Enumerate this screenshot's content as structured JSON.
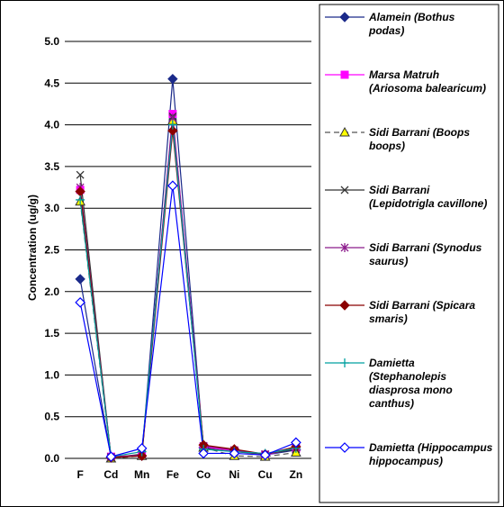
{
  "chart_data": {
    "type": "line",
    "title": "",
    "xlabel": "",
    "ylabel": "Concentration (ug/g)",
    "ylim": [
      0,
      5
    ],
    "yticks": [
      "0.0",
      "0.5",
      "1.0",
      "1.5",
      "2.0",
      "2.5",
      "3.0",
      "3.5",
      "4.0",
      "4.5",
      "5.0"
    ],
    "categories": [
      "F",
      "Cd",
      "Mn",
      "Fe",
      "Co",
      "Ni",
      "Cu",
      "Zn"
    ],
    "grid": "horizontal",
    "legend_position": "right",
    "series": [
      {
        "name": "Alamein   (Bothus podas)",
        "legend_lines": [
          "Alamein   (Bothus",
          "podas)"
        ],
        "color": "#1b2a8a",
        "marker": "diamond",
        "dash": "",
        "values": [
          2.15,
          0.01,
          0.03,
          4.55,
          0.13,
          0.1,
          0.04,
          0.1
        ]
      },
      {
        "name": "Marsa Matruh (Ariosoma balearicum)",
        "legend_lines": [
          "Marsa Matruh",
          "(Ariosoma balearicum)"
        ],
        "color": "#ff00ff",
        "marker": "square",
        "dash": "",
        "values": [
          3.22,
          0.02,
          0.04,
          4.13,
          0.14,
          0.09,
          0.04,
          0.12
        ]
      },
      {
        "name": "Sidi Barrani (Boops boops)",
        "legend_lines": [
          "Sidi Barrani (Boops",
          "boops)"
        ],
        "color": "#555555",
        "marker": "triangle",
        "markerFill": "#ffff00",
        "dash": "6,4",
        "values": [
          3.08,
          0.0,
          0.03,
          4.05,
          0.13,
          0.03,
          0.02,
          0.07
        ]
      },
      {
        "name": "Sidi Barrani (Lepidotrigla cavillone)",
        "legend_lines": [
          "Sidi Barrani",
          "(Lepidotrigla cavillone)"
        ],
        "color": "#333333",
        "marker": "x",
        "dash": "",
        "values": [
          3.4,
          0.01,
          0.05,
          4.1,
          0.12,
          0.08,
          0.05,
          0.11
        ]
      },
      {
        "name": "Sidi Barrani (Synodus saurus)",
        "legend_lines": [
          "Sidi Barrani (Synodus",
          "saurus)"
        ],
        "color": "#8b1a8b",
        "marker": "star",
        "dash": "",
        "values": [
          3.25,
          0.02,
          0.04,
          4.08,
          0.15,
          0.1,
          0.05,
          0.13
        ]
      },
      {
        "name": "Sidi Barrani (Spicara smaris)",
        "legend_lines": [
          "Sidi Barrani (Spicara",
          "smaris)"
        ],
        "color": "#8b0000",
        "marker": "diamond",
        "dash": "",
        "values": [
          3.2,
          0.01,
          0.03,
          3.93,
          0.16,
          0.11,
          0.05,
          0.14
        ]
      },
      {
        "name": "Damietta (Stephanolepis diasprosa mono canthus)",
        "legend_lines": [
          "Damietta",
          "(Stephanolepis",
          "diasprosa mono",
          "canthus)"
        ],
        "color": "#00a0a0",
        "marker": "plus",
        "dash": "",
        "values": [
          3.1,
          0.02,
          0.08,
          4.0,
          0.11,
          0.08,
          0.06,
          0.12
        ]
      },
      {
        "name": "Damietta (Hippocampus hippocampus)",
        "legend_lines": [
          "Damietta (Hippocampus",
          "hippocampus)"
        ],
        "color": "#0000ff",
        "marker": "diamond-open",
        "dash": "",
        "values": [
          1.87,
          0.02,
          0.12,
          3.27,
          0.06,
          0.06,
          0.04,
          0.19
        ]
      }
    ]
  }
}
